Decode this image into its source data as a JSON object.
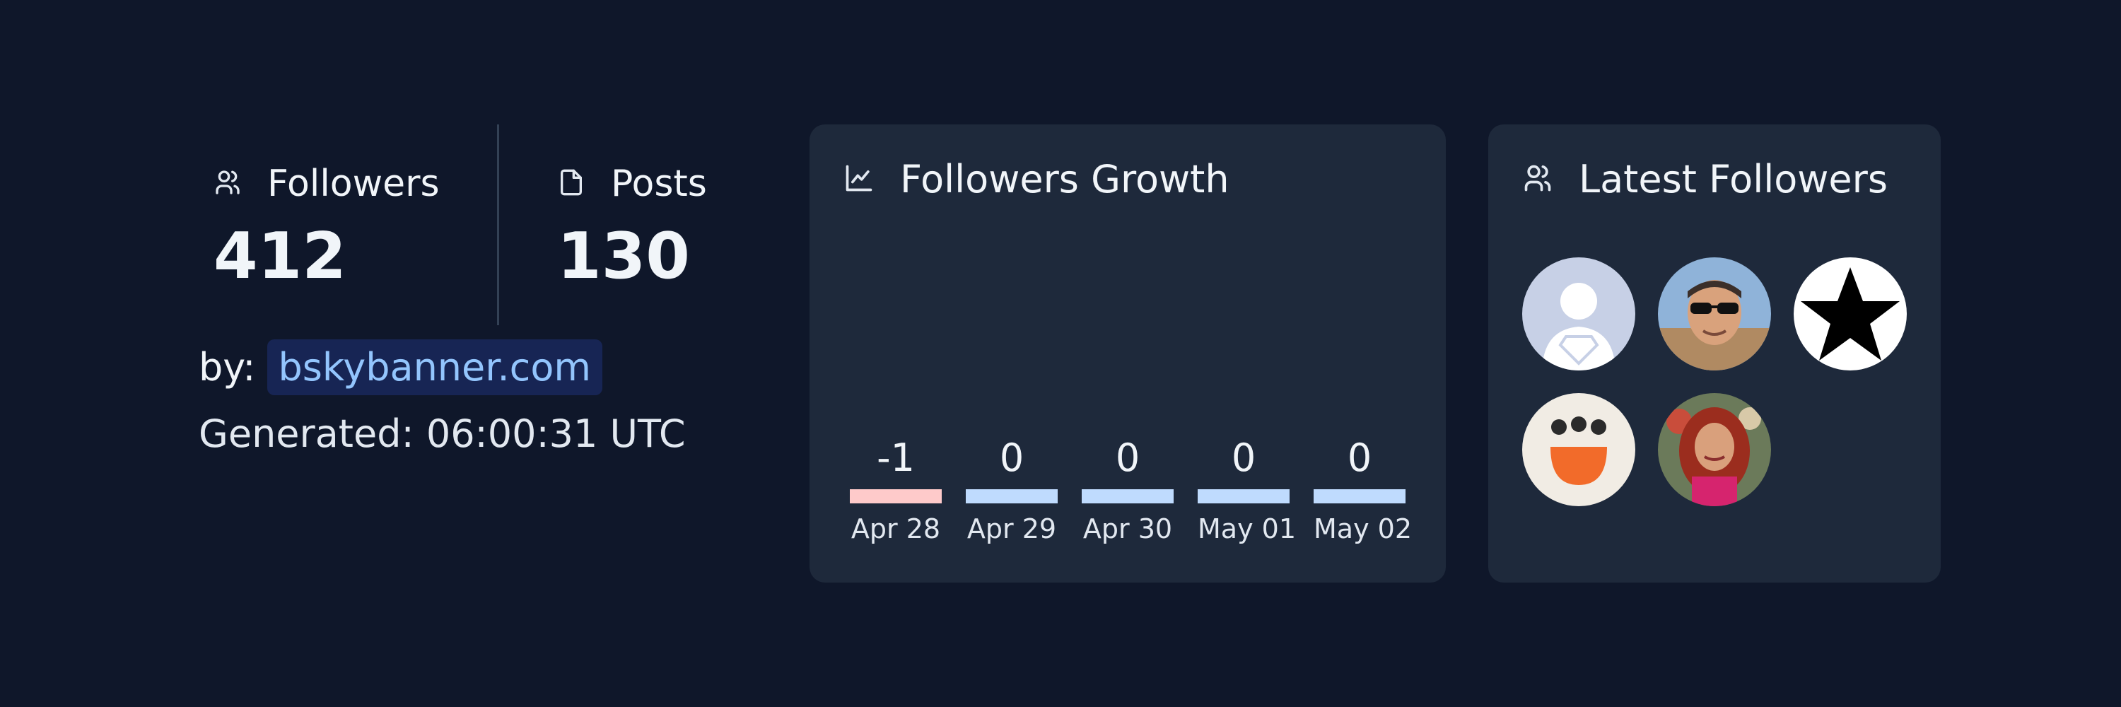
{
  "stats": {
    "followers": {
      "label": "Followers",
      "value": "412",
      "icon": "users-icon"
    },
    "posts": {
      "label": "Posts",
      "value": "130",
      "icon": "file-icon"
    }
  },
  "byline": {
    "label": "by:",
    "link": "bskybanner.com"
  },
  "generated": "Generated: 06:00:31 UTC",
  "growth_card": {
    "title": "Followers Growth",
    "icon": "line-chart-icon"
  },
  "chart_data": {
    "type": "bar",
    "categories": [
      "Apr 28",
      "Apr 29",
      "Apr 30",
      "May 01",
      "May 02"
    ],
    "values": [
      -1,
      0,
      0,
      0,
      0
    ],
    "value_labels": [
      "-1",
      "0",
      "0",
      "0",
      "0"
    ],
    "colors": {
      "negative": "#fecaca",
      "neutral": "#bfdbfe"
    }
  },
  "latest_card": {
    "title": "Latest Followers",
    "icon": "users-icon",
    "avatars": [
      "superman-silhouette-avatar",
      "man-with-sunglasses-avatar",
      "black-star-avatar",
      "orange-smiley-avatar",
      "red-haired-woman-avatar"
    ]
  },
  "colors": {
    "background": "#0f172a",
    "card": "#1e293b",
    "link": "#93c5fd"
  }
}
